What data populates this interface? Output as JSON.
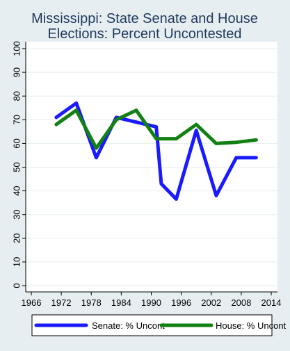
{
  "chart_data": {
    "type": "line",
    "title_lines": [
      "Mississippi: State Senate and House",
      "Elections: Percent Uncontested"
    ],
    "xlabel": "",
    "ylabel": "",
    "xlim": [
      1966,
      2014
    ],
    "ylim": [
      0,
      100
    ],
    "x_ticks": [
      1966,
      1972,
      1978,
      1984,
      1990,
      1996,
      2002,
      2008,
      2014
    ],
    "y_ticks": [
      0,
      10,
      20,
      30,
      40,
      50,
      60,
      70,
      80,
      90,
      100
    ],
    "grid": true,
    "legend_position": "bottom",
    "series": [
      {
        "name": "Senate: % Uncont",
        "color": "#1a1aff",
        "x": [
          1971,
          1975,
          1979,
          1983,
          1987,
          1991,
          1992,
          1995,
          1999,
          2003,
          2007,
          2011
        ],
        "y": [
          71,
          77,
          54,
          71,
          69,
          67,
          43,
          36.5,
          65.5,
          38,
          54,
          54
        ]
      },
      {
        "name": "House: % Uncont",
        "color": "#128012",
        "x": [
          1971,
          1975,
          1979,
          1983,
          1987,
          1991,
          1995,
          1999,
          2003,
          2007,
          2011
        ],
        "y": [
          68,
          74,
          58,
          70,
          74,
          62,
          62,
          68,
          60,
          60.5,
          61.5
        ]
      }
    ]
  }
}
